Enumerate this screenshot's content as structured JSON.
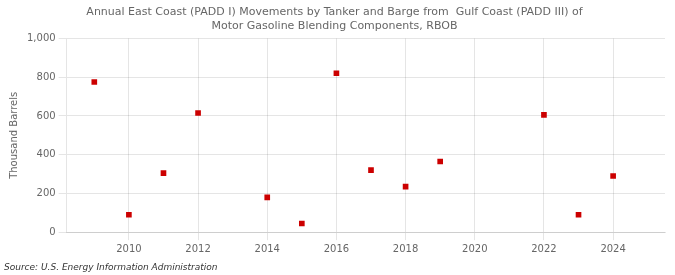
{
  "chart_data": {
    "type": "scatter",
    "title": "Annual East Coast (PADD I) Movements by Tanker and Barge from  Gulf Coast (PADD III) of\nMotor Gasoline Blending Components, RBOB",
    "y_label": "Thousand Barrels",
    "annotations": [
      "Source: U.S. Energy Information Administration"
    ],
    "x": [
      2009,
      2010,
      2011,
      2012,
      2014,
      2015,
      2016,
      2017,
      2018,
      2019,
      2022,
      2023,
      2024
    ],
    "values": [
      775,
      90,
      305,
      615,
      180,
      45,
      820,
      320,
      235,
      365,
      605,
      90,
      290
    ],
    "color": "#cc0000",
    "marker": "square",
    "xlim": [
      2008.2,
      2025.5
    ],
    "xticks": [
      2010,
      2012,
      2014,
      2016,
      2018,
      2020,
      2022,
      2024
    ],
    "ylim": [
      0,
      1000
    ],
    "yticks": [
      0,
      200,
      400,
      600,
      800,
      {
        "value": 1000,
        "label": "1,000"
      }
    ],
    "grid": true
  }
}
